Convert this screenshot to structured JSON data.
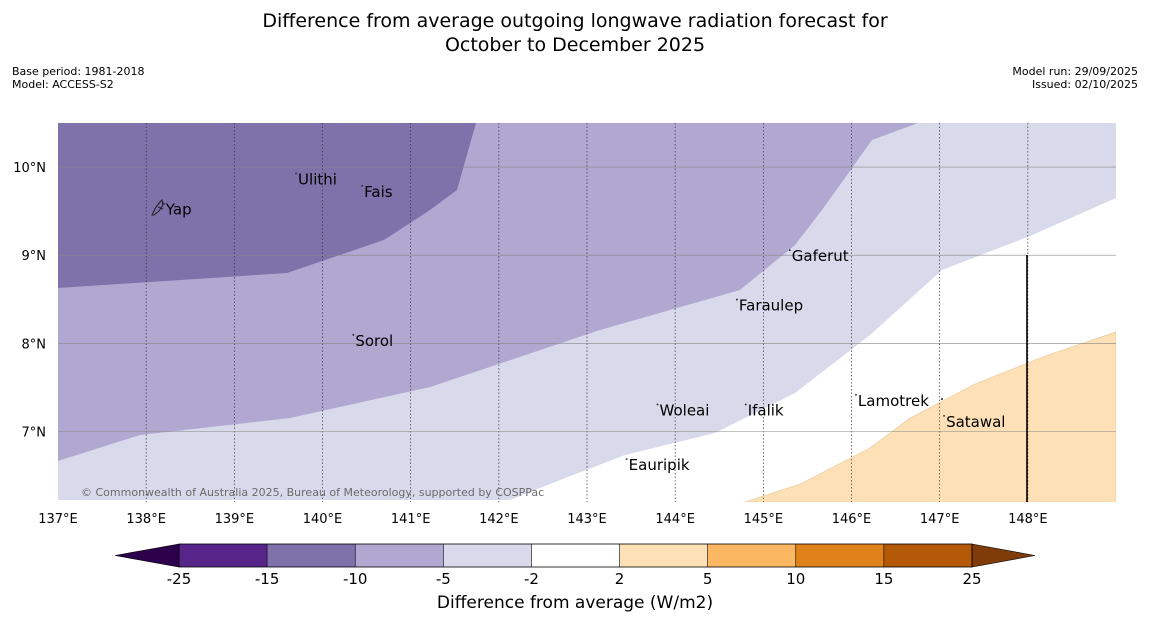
{
  "title": {
    "line1": "Difference from average outgoing longwave radiation forecast for",
    "line2": "October to December 2025"
  },
  "meta": {
    "base_period": "Base period: 1981-2018",
    "model": "Model: ACCESS-S2",
    "model_run": "Model run: 29/09/2025",
    "issued": "Issued: 02/10/2025"
  },
  "copyright": "© Commonwealth of Australia 2025, Bureau of Meteorology, supported by COSPPac",
  "axes": {
    "lon_ticks": [
      137,
      138,
      139,
      140,
      141,
      142,
      143,
      144,
      145,
      146,
      147,
      148
    ],
    "lon_labels": [
      "137°E",
      "138°E",
      "139°E",
      "140°E",
      "141°E",
      "142°E",
      "143°E",
      "144°E",
      "145°E",
      "146°E",
      "147°E",
      "148°E"
    ],
    "lat_ticks": [
      10,
      9,
      8,
      7
    ],
    "lat_labels": [
      "10°N",
      "9°N",
      "8°N",
      "7°N"
    ],
    "lon_range": [
      137,
      149
    ],
    "lat_range": [
      6.2,
      10.5
    ]
  },
  "places": [
    {
      "name": "Yap",
      "lon": 138.2,
      "lat": 9.53
    },
    {
      "name": "Ulithi",
      "lon": 139.7,
      "lat": 9.87
    },
    {
      "name": "Fais",
      "lon": 140.45,
      "lat": 9.73
    },
    {
      "name": "Gaferut",
      "lon": 145.3,
      "lat": 9.0
    },
    {
      "name": "Faraulep",
      "lon": 144.7,
      "lat": 8.44
    },
    {
      "name": "Sorol",
      "lon": 140.35,
      "lat": 8.04
    },
    {
      "name": "Lamotrek",
      "lon": 146.05,
      "lat": 7.36
    },
    {
      "name": "Woleai",
      "lon": 143.8,
      "lat": 7.25
    },
    {
      "name": "Ifalik",
      "lon": 144.8,
      "lat": 7.25
    },
    {
      "name": "Satawal",
      "lon": 147.05,
      "lat": 7.12
    },
    {
      "name": "Eauripik",
      "lon": 143.45,
      "lat": 6.63
    }
  ],
  "colorbar": {
    "boundaries": [
      "-25",
      "-15",
      "-10",
      "-5",
      "-2",
      "2",
      "5",
      "10",
      "15",
      "25"
    ],
    "colors": [
      "#572489",
      "#7f72ab",
      "#b0a8d1",
      "#d8d9eb",
      "#ffffff",
      "#fde0b5",
      "#fbb761",
      "#e0821a",
      "#b35907"
    ],
    "under_color": "#2d004b",
    "over_color": "#7f3b08",
    "label": "Difference from average (W/m2)"
  },
  "colors": {
    "class_minus15_minus10": "#7f72ab",
    "class_minus10_minus5": "#b0a8d1",
    "class_minus5_minus2": "#d8d9eb",
    "class_minus2_2": "#ffffff",
    "class_2_5": "#fde0b5"
  }
}
